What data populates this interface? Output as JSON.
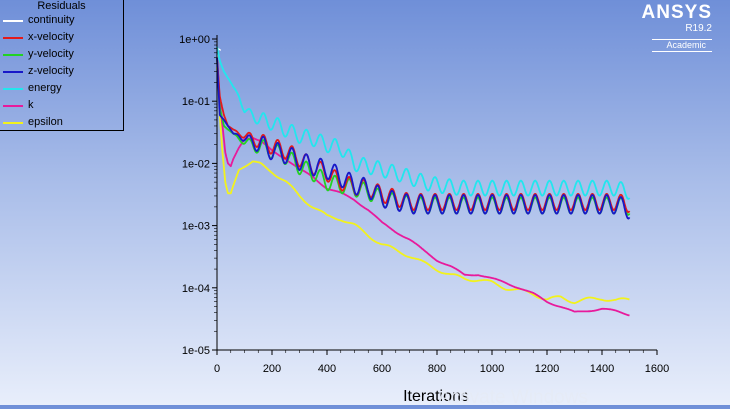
{
  "brand": {
    "name": "ANSYS",
    "version": "R19.2",
    "edition": "Academic"
  },
  "watermark": "Activate Windows",
  "legend": {
    "title": "Residuals",
    "entries": [
      {
        "label": "continuity",
        "color": "#ffffff"
      },
      {
        "label": "x-velocity",
        "color": "#e41a1a"
      },
      {
        "label": "y-velocity",
        "color": "#22d222"
      },
      {
        "label": "z-velocity",
        "color": "#1818c8"
      },
      {
        "label": "energy",
        "color": "#22e6ee"
      },
      {
        "label": "k",
        "color": "#e81a9c"
      },
      {
        "label": "epsilon",
        "color": "#f2f21c"
      }
    ]
  },
  "chart_data": {
    "type": "line",
    "title": "Residuals",
    "xlabel": "Iterations",
    "ylabel": "",
    "xlim": [
      0,
      1600
    ],
    "ylim": [
      1e-05,
      1
    ],
    "yscale": "log",
    "xticks": [
      0,
      200,
      400,
      600,
      800,
      1000,
      1200,
      1400,
      1600
    ],
    "xtick_labels": [
      "0",
      "200",
      "400",
      "600",
      "800",
      "1000",
      "1200",
      "1400",
      "1600"
    ],
    "yticks": [
      1,
      0.1,
      0.01,
      0.001,
      0.0001,
      1e-05
    ],
    "ytick_labels": [
      "1e+00",
      "1e-01",
      "1e-02",
      "1e-03",
      "1e-04",
      "1e-05"
    ],
    "series": [
      {
        "name": "continuity",
        "color": "#ffffff",
        "x": [
          0,
          5,
          15
        ],
        "y": [
          0.5,
          0.7,
          0.65
        ]
      },
      {
        "name": "x-velocity",
        "color": "#e41a1a",
        "x": [
          0,
          10,
          25,
          40,
          60,
          80,
          100,
          130,
          160,
          200,
          250,
          300,
          350,
          400,
          450,
          500,
          550,
          600,
          650,
          700,
          750,
          800,
          850,
          900,
          950,
          1000,
          1050,
          1100,
          1150,
          1200,
          1250,
          1300,
          1350,
          1400,
          1450,
          1500
        ],
        "y": [
          0.5,
          0.12,
          0.06,
          0.04,
          0.035,
          0.03,
          0.028,
          0.025,
          0.022,
          0.019,
          0.016,
          0.012,
          0.009,
          0.007,
          0.005,
          0.0042,
          0.004,
          0.0032,
          0.0028,
          0.0024,
          0.0024,
          0.0024,
          0.0024,
          0.0024,
          0.0024,
          0.0024,
          0.0024,
          0.0024,
          0.0024,
          0.0024,
          0.0024,
          0.0024,
          0.0024,
          0.0024,
          0.0024,
          0.0022
        ]
      },
      {
        "name": "y-velocity",
        "color": "#22d222",
        "x": [
          0,
          10,
          25,
          40,
          60,
          80,
          100,
          130,
          160,
          200,
          250,
          300,
          350,
          400,
          450,
          500,
          550,
          600,
          650,
          700,
          750,
          800,
          850,
          900,
          950,
          1000,
          1050,
          1100,
          1150,
          1200,
          1250,
          1300,
          1350,
          1400,
          1450,
          1500
        ],
        "y": [
          0.5,
          0.08,
          0.04,
          0.035,
          0.03,
          0.025,
          0.022,
          0.02,
          0.018,
          0.016,
          0.013,
          0.009,
          0.007,
          0.005,
          0.0045,
          0.004,
          0.0035,
          0.0027,
          0.0024,
          0.0022,
          0.0021,
          0.0021,
          0.0021,
          0.0021,
          0.0021,
          0.0021,
          0.0021,
          0.0021,
          0.0021,
          0.0021,
          0.0021,
          0.0021,
          0.0021,
          0.0021,
          0.0021,
          0.002
        ]
      },
      {
        "name": "z-velocity",
        "color": "#1818c8",
        "x": [
          0,
          10,
          25,
          40,
          60,
          80,
          100,
          130,
          160,
          200,
          250,
          300,
          350,
          400,
          450,
          500,
          550,
          600,
          650,
          700,
          750,
          800,
          850,
          900,
          950,
          1000,
          1050,
          1100,
          1150,
          1200,
          1250,
          1300,
          1350,
          1400,
          1450,
          1500
        ],
        "y": [
          0.5,
          0.06,
          0.05,
          0.04,
          0.03,
          0.028,
          0.025,
          0.022,
          0.02,
          0.016,
          0.014,
          0.011,
          0.009,
          0.008,
          0.006,
          0.0045,
          0.004,
          0.0028,
          0.0025,
          0.0022,
          0.0022,
          0.0022,
          0.0022,
          0.0022,
          0.0022,
          0.0022,
          0.0022,
          0.0022,
          0.0022,
          0.0022,
          0.0022,
          0.0022,
          0.0022,
          0.0022,
          0.0022,
          0.0018
        ]
      },
      {
        "name": "energy",
        "color": "#22e6ee",
        "x": [
          0,
          10,
          25,
          50,
          80,
          100,
          130,
          160,
          200,
          250,
          300,
          350,
          400,
          450,
          500,
          550,
          600,
          650,
          700,
          750,
          800,
          850,
          900,
          950,
          1000,
          1050,
          1100,
          1150,
          1200,
          1250,
          1300,
          1350,
          1400,
          1450,
          1500
        ],
        "y": [
          0.75,
          0.45,
          0.3,
          0.2,
          0.12,
          0.07,
          0.06,
          0.05,
          0.045,
          0.035,
          0.028,
          0.025,
          0.02,
          0.018,
          0.01,
          0.009,
          0.008,
          0.007,
          0.006,
          0.005,
          0.0045,
          0.0042,
          0.004,
          0.004,
          0.004,
          0.004,
          0.004,
          0.004,
          0.004,
          0.004,
          0.004,
          0.004,
          0.004,
          0.004,
          0.0035
        ]
      },
      {
        "name": "k",
        "color": "#e81a9c",
        "x": [
          0,
          10,
          20,
          30,
          40,
          50,
          60,
          80,
          100,
          130,
          160,
          200,
          250,
          300,
          350,
          400,
          450,
          500,
          550,
          600,
          650,
          700,
          750,
          800,
          850,
          900,
          950,
          1000,
          1050,
          1100,
          1150,
          1200,
          1250,
          1300,
          1350,
          1400,
          1450,
          1500
        ],
        "y": [
          0.5,
          0.1,
          0.04,
          0.015,
          0.01,
          0.009,
          0.012,
          0.018,
          0.025,
          0.026,
          0.022,
          0.016,
          0.012,
          0.008,
          0.006,
          0.004,
          0.0033,
          0.0026,
          0.0018,
          0.0011,
          0.0008,
          0.0006,
          0.0004,
          0.00028,
          0.00022,
          0.00016,
          0.000165,
          0.00014,
          0.00012,
          0.0001,
          8e-05,
          6e-05,
          5e-05,
          4e-05,
          4.3e-05,
          4.6e-05,
          4.2e-05,
          3.7e-05
        ]
      },
      {
        "name": "epsilon",
        "color": "#f2f21c",
        "x": [
          0,
          5,
          10,
          20,
          30,
          40,
          50,
          60,
          80,
          100,
          130,
          160,
          200,
          250,
          300,
          350,
          400,
          450,
          500,
          550,
          600,
          650,
          700,
          750,
          800,
          850,
          900,
          950,
          1000,
          1050,
          1100,
          1150,
          1200,
          1250,
          1300,
          1350,
          1400,
          1450,
          1500
        ],
        "y": [
          0.35,
          0.2,
          0.06,
          0.015,
          0.005,
          0.0033,
          0.0033,
          0.0045,
          0.008,
          0.009,
          0.0105,
          0.0095,
          0.0075,
          0.005,
          0.003,
          0.002,
          0.0014,
          0.0013,
          0.001,
          0.0007,
          0.0005,
          0.0004,
          0.00033,
          0.00025,
          0.0002,
          0.00016,
          0.00014,
          0.000135,
          0.00012,
          0.0001,
          9e-05,
          8e-05,
          6.5e-05,
          7e-05,
          6e-05,
          6.5e-05,
          6.8e-05,
          6.2e-05,
          6.5e-05
        ]
      }
    ]
  }
}
